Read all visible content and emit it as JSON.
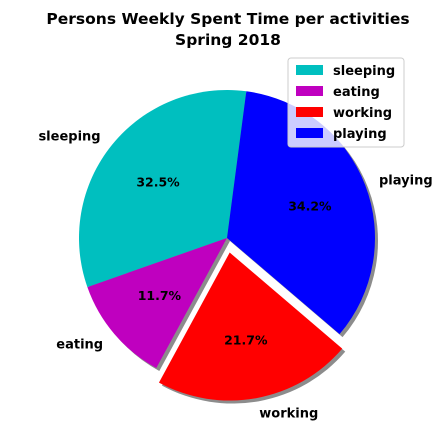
{
  "chart_data": {
    "type": "pie",
    "title": "Persons Weekly Spent Time per activities",
    "subtitle": "Spring 2018",
    "slices": [
      {
        "label": "sleeping",
        "value": 32.5,
        "pct_label": "32.5%",
        "color": "#00bfbf",
        "exploded": false
      },
      {
        "label": "eating",
        "value": 11.7,
        "pct_label": "11.7%",
        "color": "#bf00bf",
        "exploded": false
      },
      {
        "label": "working",
        "value": 21.7,
        "pct_label": "21.7%",
        "color": "#ff0000",
        "exploded": true
      },
      {
        "label": "playing",
        "value": 34.2,
        "pct_label": "34.2%",
        "color": "#0000ff",
        "exploded": false
      }
    ],
    "start_angle_deg": 82.5,
    "direction": "counterclockwise",
    "shadow": true,
    "legend": {
      "position": "top-right",
      "entries": [
        "sleeping",
        "eating",
        "working",
        "playing"
      ]
    }
  }
}
